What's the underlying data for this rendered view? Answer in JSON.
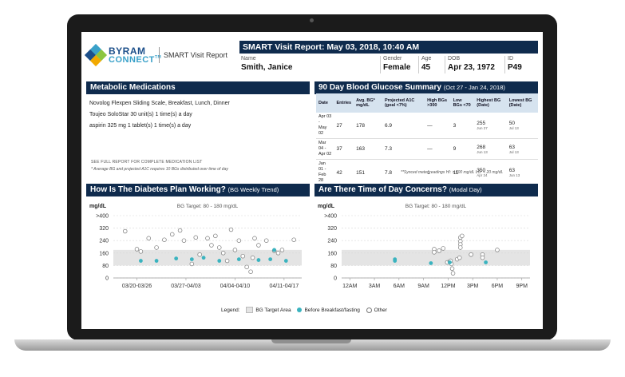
{
  "logo": {
    "line1": "BYRAM",
    "line2": "CONNECT",
    "tm": "TM",
    "report": "SMART Visit Report"
  },
  "header": {
    "title": "SMART Visit Report: May 03, 2018, 10:40 AM"
  },
  "patient": {
    "name_label": "Name",
    "name": "Smith, Janice",
    "gender_label": "Gender",
    "gender": "Female",
    "age_label": "Age",
    "age": "45",
    "dob_label": "DOB",
    "dob": "Apr 23, 1972",
    "id_label": "ID",
    "id": "P49"
  },
  "medications": {
    "title": "Metabolic Medications",
    "items": [
      "Novolog Flexpen Sliding Scale, Breakfast, Lunch, Dinner",
      "Toujeo SoloStar 30 unit(s) 1 time(s) a day",
      "aspirin 325 mg 1 tablet(s) 1 time(s) a day"
    ],
    "note1": "SEE FULL REPORT FOR COMPLETE MEDICATION LIST",
    "note2": "* Average BG and projected A1C requires 10 BGs distributed over time of day"
  },
  "summary": {
    "title": "90 Day Blood Glucose Summary",
    "range": "(Oct 27 - Jan 24, 2018)",
    "headers": [
      "Date",
      "Entries",
      "Avg. BG* mg/dL",
      "Projected A1C (goal <7%)",
      "High BGs >300",
      "Low BGs <70",
      "Highest BG (Date)",
      "Lowest BG (Date)"
    ],
    "rows": [
      {
        "date1": "Apr 03 -",
        "date2": "May 02",
        "entries": "27",
        "avg": "178",
        "a1c": "6.9",
        "high": "—",
        "low": "3",
        "highest": "255",
        "highest_date": "Jun 27",
        "lowest": "50",
        "lowest_date": "Jul 13"
      },
      {
        "date1": "Mar 04 -",
        "date2": "Apr 02",
        "entries": "37",
        "avg": "163",
        "a1c": "7.3",
        "high": "—",
        "low": "9",
        "highest": "268",
        "highest_date": "Jun 13",
        "lowest": "63",
        "lowest_date": "Jul 13"
      },
      {
        "date1": "Jan 01 -",
        "date2": "Feb 28",
        "entries": "42",
        "avg": "151",
        "a1c": "7.8",
        "high": "1",
        "low": "11",
        "highest": "350",
        "highest_date": "Apr 24",
        "lowest": "63",
        "lowest_date": "Jun 13"
      }
    ],
    "note": "**Synced meter readings HI: > 600 mg/dL LO: < 20 mg/dL"
  },
  "plan_chart": {
    "title": "How Is The Diabetes Plan Working?",
    "sub": "(BG Weekly Trend)",
    "unit": "mg/dL",
    "target": "BG Target: 80 - 180 mg/dL",
    "y_ticks": [
      ">400",
      "320",
      "240",
      "160",
      "80",
      "0"
    ],
    "x_labels": [
      "03/20-03/26",
      "03/27-04/03",
      "04/04-04/10",
      "04/11-04/17"
    ],
    "target_range": [
      80,
      180
    ],
    "ylim": [
      0,
      400
    ],
    "other": [
      [
        0.3,
        300
      ],
      [
        0.6,
        185
      ],
      [
        0.7,
        170
      ],
      [
        0.9,
        255
      ],
      [
        1.1,
        195
      ],
      [
        1.3,
        245
      ],
      [
        1.5,
        280
      ],
      [
        1.7,
        305
      ],
      [
        1.8,
        240
      ],
      [
        2.0,
        90
      ],
      [
        2.1,
        260
      ],
      [
        2.2,
        150
      ],
      [
        2.4,
        255
      ],
      [
        2.5,
        210
      ],
      [
        2.6,
        270
      ],
      [
        2.7,
        195
      ],
      [
        2.8,
        160
      ],
      [
        2.9,
        110
      ],
      [
        3.0,
        310
      ],
      [
        3.1,
        180
      ],
      [
        3.2,
        240
      ],
      [
        3.3,
        140
      ],
      [
        3.4,
        70
      ],
      [
        3.5,
        40
      ],
      [
        3.6,
        255
      ],
      [
        3.7,
        210
      ],
      [
        3.9,
        240
      ],
      [
        4.1,
        175
      ],
      [
        4.2,
        160
      ],
      [
        4.3,
        180
      ],
      [
        4.6,
        245
      ],
      [
        3.55,
        130
      ]
    ],
    "before": [
      [
        0.7,
        110
      ],
      [
        1.1,
        110
      ],
      [
        1.6,
        125
      ],
      [
        2.0,
        120
      ],
      [
        2.3,
        130
      ],
      [
        2.7,
        110
      ],
      [
        3.2,
        120
      ],
      [
        3.7,
        115
      ],
      [
        4.0,
        120
      ],
      [
        4.4,
        110
      ],
      [
        4.1,
        180
      ]
    ]
  },
  "tod_chart": {
    "title": "Are There Time of Day Concerns?",
    "sub": "(Modal Day)",
    "unit": "mg/dL",
    "target": "BG Target: 80 - 180 mg/dL",
    "y_ticks": [
      ">400",
      "320",
      "240",
      "160",
      "80",
      "0"
    ],
    "x_labels": [
      "12AM",
      "3AM",
      "6AM",
      "9AM",
      "12PM",
      "3PM",
      "6PM",
      "9PM"
    ],
    "target_range": [
      80,
      180
    ],
    "ylim": [
      0,
      400
    ],
    "other": [
      [
        10.3,
        185
      ],
      [
        10.3,
        165
      ],
      [
        10.9,
        175
      ],
      [
        11.4,
        190
      ],
      [
        11.9,
        100
      ],
      [
        12.2,
        105
      ],
      [
        12.4,
        90
      ],
      [
        12.5,
        60
      ],
      [
        12.6,
        30
      ],
      [
        12.3,
        110
      ],
      [
        13.1,
        120
      ],
      [
        13.4,
        130
      ],
      [
        13.5,
        260
      ],
      [
        13.5,
        235
      ],
      [
        13.5,
        215
      ],
      [
        13.5,
        195
      ],
      [
        13.7,
        270
      ],
      [
        14.8,
        150
      ],
      [
        16.2,
        150
      ],
      [
        16.2,
        130
      ],
      [
        18.0,
        180
      ]
    ],
    "before": [
      [
        5.5,
        120
      ],
      [
        5.5,
        110
      ],
      [
        9.9,
        95
      ],
      [
        12.2,
        100
      ],
      [
        16.6,
        100
      ]
    ]
  },
  "legend": {
    "label": "Legend:",
    "target": "BG Target Area",
    "before": "Before Breakfast/fasting",
    "other": "Other"
  },
  "colors": {
    "navy": "#0f2b4d",
    "teal": "#3ab3bf",
    "target_band": "#e4e4e4"
  }
}
